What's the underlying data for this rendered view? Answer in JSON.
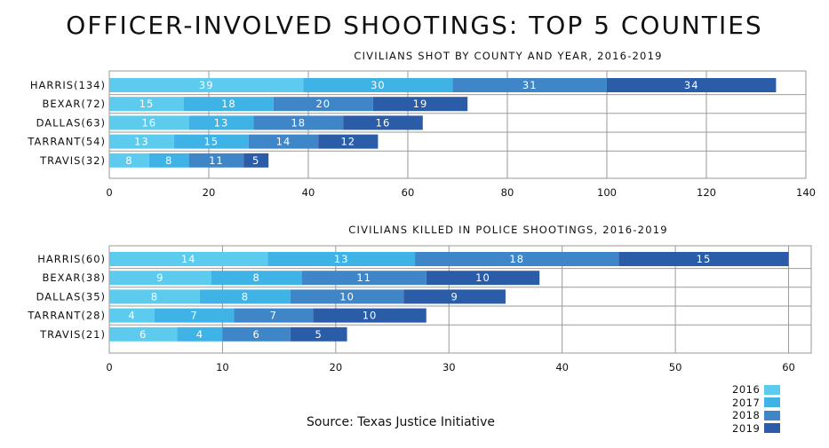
{
  "title": "OFFICER-INVOLVED SHOOTINGS: TOP 5 COUNTIES",
  "source": "Source: Texas Justice Initiative",
  "colors": {
    "2016": "#5ccbee",
    "2017": "#3fb3e6",
    "2018": "#3f86c8",
    "2019": "#2a5ca8"
  },
  "legend": [
    {
      "label": "2016",
      "color": "#5ccbee"
    },
    {
      "label": "2017",
      "color": "#3fb3e6"
    },
    {
      "label": "2018",
      "color": "#3f86c8"
    },
    {
      "label": "2019",
      "color": "#2a5ca8"
    }
  ],
  "chart_data": [
    {
      "type": "bar",
      "orientation": "horizontal",
      "stacked": true,
      "title": "CIVILIANS SHOT BY COUNTY AND YEAR, 2016-2019",
      "categories": [
        "HARRIS(134)",
        "BEXAR(72)",
        "DALLAS(63)",
        "TARRANT(54)",
        "TRAVIS(32)"
      ],
      "series": [
        {
          "name": "2016",
          "values": [
            39,
            15,
            16,
            13,
            8
          ]
        },
        {
          "name": "2017",
          "values": [
            30,
            18,
            13,
            15,
            8
          ]
        },
        {
          "name": "2018",
          "values": [
            31,
            20,
            18,
            14,
            11
          ]
        },
        {
          "name": "2019",
          "values": [
            34,
            19,
            16,
            12,
            5
          ]
        }
      ],
      "xlim": [
        0,
        140
      ],
      "xticks": [
        0,
        20,
        40,
        60,
        80,
        100,
        120,
        140
      ],
      "grid": true,
      "legend": "bottom-right"
    },
    {
      "type": "bar",
      "orientation": "horizontal",
      "stacked": true,
      "title": "CIVILIANS KILLED IN POLICE SHOOTINGS, 2016-2019",
      "categories": [
        "HARRIS(60)",
        "BEXAR(38)",
        "DALLAS(35)",
        "TARRANT(28)",
        "TRAVIS(21)"
      ],
      "series": [
        {
          "name": "2016",
          "values": [
            14,
            9,
            8,
            4,
            6
          ]
        },
        {
          "name": "2017",
          "values": [
            13,
            8,
            8,
            7,
            4
          ]
        },
        {
          "name": "2018",
          "values": [
            18,
            11,
            10,
            7,
            6
          ]
        },
        {
          "name": "2019",
          "values": [
            15,
            10,
            9,
            10,
            5
          ]
        }
      ],
      "xlim": [
        0,
        62
      ],
      "xticks": [
        0,
        10,
        20,
        30,
        40,
        50,
        60
      ],
      "grid": true,
      "legend": "bottom-right"
    }
  ]
}
